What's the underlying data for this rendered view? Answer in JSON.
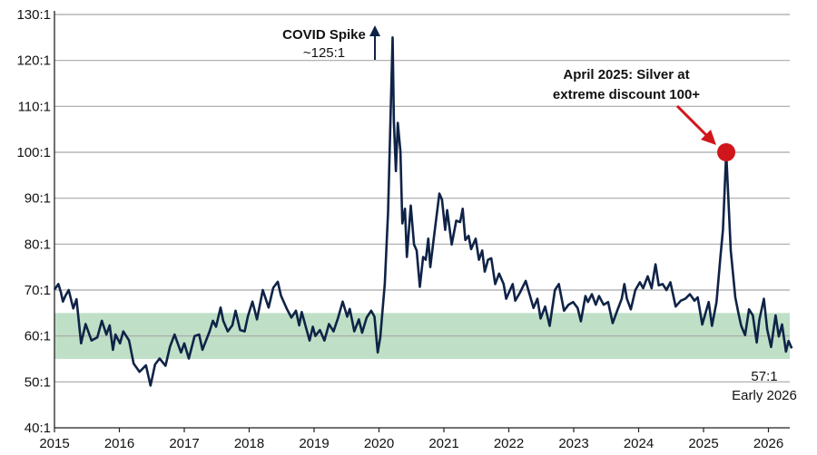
{
  "chart_data": {
    "type": "line",
    "title": "",
    "xlabel": "",
    "ylabel": "",
    "xlim": [
      2015,
      2026.36
    ],
    "ylim": [
      40,
      130
    ],
    "grid": true,
    "x_ticks": [
      "2015",
      "2016",
      "2017",
      "2018",
      "2019",
      "2020",
      "2021",
      "2022",
      "2023",
      "2024",
      "2025",
      "2026"
    ],
    "y_ticks": [
      "40:1",
      "50:1",
      "60:1",
      "70:1",
      "80:1",
      "90:1",
      "100:1",
      "110:1",
      "120:1",
      "130:1"
    ],
    "shaded_band": {
      "from": 55,
      "to": 65,
      "color": "#bfe0c6"
    },
    "colors": {
      "line": "#0f2347",
      "highlight": "#d0161b",
      "grid": "#a8a8a8"
    },
    "annotations": {
      "covid_title": "COVID Spike",
      "covid_value": "~125:1",
      "april_line1": "April 2025: Silver at",
      "april_line2": "extreme discount 100+",
      "april_point": {
        "x": 2025.35,
        "y": 100
      },
      "end_value": "57:1",
      "end_label": "Early 2026"
    },
    "series": [
      {
        "x": [
          2015.0,
          2015.06,
          2015.1,
          2015.13,
          2015.17,
          2015.22,
          2015.29,
          2015.34,
          2015.41,
          2015.48,
          2015.57,
          2015.66,
          2015.73,
          2015.8,
          2015.85,
          2015.9,
          2015.94,
          2016.01,
          2016.06,
          2016.15,
          2016.22,
          2016.31,
          2016.41,
          2016.48,
          2016.55,
          2016.62,
          2016.71,
          2016.78,
          2016.85,
          2016.95,
          2017.0,
          2017.07,
          2017.16,
          2017.23,
          2017.28,
          2017.39,
          2017.44,
          2017.49,
          2017.56,
          2017.6,
          2017.67,
          2017.74,
          2017.79,
          2017.86,
          2017.93,
          2017.98,
          2018.05,
          2018.12,
          2018.21,
          2018.3,
          2018.37,
          2018.44,
          2018.49,
          2018.58,
          2018.65,
          2018.72,
          2018.77,
          2018.81,
          2018.93,
          2018.98,
          2019.02,
          2019.09,
          2019.16,
          2019.23,
          2019.3,
          2019.37,
          2019.44,
          2019.51,
          2019.55,
          2019.62,
          2019.69,
          2019.74,
          2019.81,
          2019.88,
          2019.93,
          2019.98,
          2020.02,
          2020.09,
          2020.14,
          2020.21,
          2020.23,
          2020.26,
          2020.29,
          2020.33,
          2020.36,
          2020.4,
          2020.43,
          2020.49,
          2020.54,
          2020.58,
          2020.63,
          2020.68,
          2020.72,
          2020.76,
          2020.79,
          2020.86,
          2020.93,
          2020.97,
          2021.02,
          2021.05,
          2021.12,
          2021.19,
          2021.25,
          2021.29,
          2021.33,
          2021.38,
          2021.42,
          2021.49,
          2021.54,
          2021.59,
          2021.63,
          2021.68,
          2021.73,
          2021.79,
          2021.85,
          2021.92,
          2021.96,
          2022.06,
          2022.1,
          2022.17,
          2022.26,
          2022.34,
          2022.38,
          2022.44,
          2022.49,
          2022.56,
          2022.63,
          2022.71,
          2022.77,
          2022.85,
          2022.92,
          2022.99,
          2023.06,
          2023.11,
          2023.18,
          2023.22,
          2023.28,
          2023.34,
          2023.39,
          2023.46,
          2023.53,
          2023.6,
          2023.67,
          2023.74,
          2023.78,
          2023.82,
          2023.88,
          2023.95,
          2024.02,
          2024.07,
          2024.14,
          2024.2,
          2024.26,
          2024.31,
          2024.37,
          2024.43,
          2024.49,
          2024.57,
          2024.65,
          2024.72,
          2024.79,
          2024.86,
          2024.91,
          2024.98,
          2025.08,
          2025.13,
          2025.2,
          2025.26,
          2025.3,
          2025.35,
          2025.42,
          2025.49,
          2025.54,
          2025.58,
          2025.64,
          2025.7,
          2025.76,
          2025.82,
          2025.86,
          2025.93,
          2025.98,
          2026.04,
          2026.11,
          2026.16,
          2026.21,
          2026.27,
          2026.31,
          2026.36
        ],
        "y": [
          70.1,
          71.3,
          69.5,
          67.5,
          68.8,
          70,
          66,
          68,
          58.4,
          62.6,
          59,
          59.7,
          63.3,
          60.3,
          62.3,
          57,
          60.3,
          58.4,
          61,
          59,
          54,
          52.2,
          53.6,
          49.2,
          53.8,
          55.1,
          53.5,
          57.7,
          60.3,
          56.4,
          58.4,
          55.1,
          60,
          60.3,
          57,
          61,
          63.3,
          62,
          66.2,
          63.3,
          61,
          62.3,
          65.5,
          61.3,
          61,
          64.3,
          67.5,
          63.6,
          70,
          66.2,
          70.5,
          71.8,
          68.8,
          65.9,
          64,
          65.5,
          62.3,
          65.2,
          59,
          62,
          60,
          61.3,
          59,
          62.6,
          61,
          64,
          67.5,
          64.2,
          65.9,
          61,
          63.6,
          60.7,
          64,
          65.5,
          64.2,
          56.4,
          59.7,
          71.4,
          87,
          125,
          106.7,
          95.9,
          106.4,
          100.2,
          84.5,
          87.7,
          77.2,
          88.4,
          79.9,
          78.6,
          70.7,
          77.2,
          76.6,
          81.2,
          75,
          83.1,
          91,
          89.7,
          83.1,
          87.4,
          79.9,
          85.1,
          84.8,
          87.7,
          80.9,
          81.8,
          78.9,
          81.2,
          76.6,
          78.6,
          74,
          76.6,
          76.9,
          71.3,
          73.6,
          71.3,
          68.1,
          71.3,
          67.7,
          69.4,
          72,
          68.1,
          66.1,
          68.1,
          63.8,
          66.4,
          62.2,
          70,
          71.3,
          65.5,
          66.8,
          67.4,
          66.1,
          63.2,
          68.7,
          67.4,
          69.1,
          66.8,
          68.7,
          66.8,
          67.4,
          62.8,
          65.5,
          68.1,
          71.3,
          68.1,
          65.8,
          70,
          71.7,
          70.4,
          73,
          70.4,
          75.6,
          71,
          71.3,
          70,
          71.7,
          66.4,
          67.7,
          68.1,
          69.1,
          67.7,
          68.4,
          62.5,
          67.4,
          62.2,
          67.4,
          77.2,
          83.1,
          100,
          78.6,
          68.4,
          64.8,
          62.2,
          60.2,
          65.8,
          64.5,
          58.6,
          63.5,
          68.1,
          61.5,
          57.6,
          64.5,
          59.9,
          62.5,
          56.6,
          58.9,
          57.3
        ]
      }
    ]
  }
}
